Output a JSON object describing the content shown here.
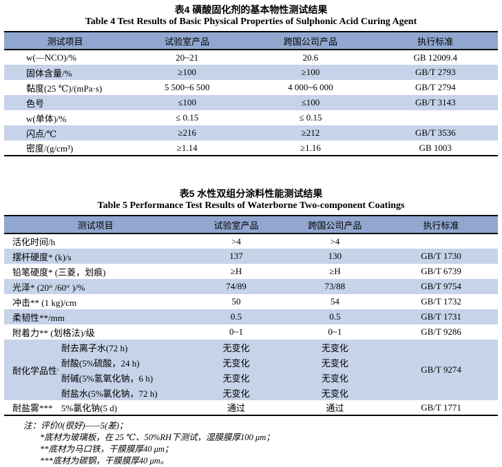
{
  "colors": {
    "header_bg": "#91a7cf",
    "row_shade": "#c6d3e9",
    "text": "#000000"
  },
  "table4": {
    "title_zh": "表4  磺酸固化剂的基本物性测试结果",
    "title_en": "Table 4  Test Results of Basic Physical Properties of Sulphonic Acid Curing Agent",
    "header_cells": [
      {
        "t": "测试项目"
      },
      {
        "t": "试验室产品"
      },
      {
        "t": "跨国公司产品"
      },
      {
        "t": "执行标准"
      }
    ],
    "rows": [
      {
        "shaded": false,
        "cells": [
          {
            "t": "w(—NCO)/%",
            "col": "name"
          },
          {
            "t": "20~21",
            "col": "lab"
          },
          {
            "t": "20.6",
            "col": "mnc"
          },
          {
            "t": "GB 12009.4",
            "col": "std"
          }
        ]
      },
      {
        "shaded": true,
        "cells": [
          {
            "t": "固体含量/%",
            "col": "name"
          },
          {
            "t": "≥100",
            "col": "lab"
          },
          {
            "t": "≥100",
            "col": "mnc"
          },
          {
            "t": "GB/T 2793",
            "col": "std"
          }
        ]
      },
      {
        "shaded": false,
        "cells": [
          {
            "t": "黏度(25 ℃)/(mPa·s)",
            "col": "name"
          },
          {
            "t": "5 500~6 500",
            "col": "lab"
          },
          {
            "t": "4 000~6 000",
            "col": "mnc"
          },
          {
            "t": "GB/T 2794",
            "col": "std"
          }
        ]
      },
      {
        "shaded": true,
        "cells": [
          {
            "t": "色号",
            "col": "name"
          },
          {
            "t": "≤100",
            "col": "lab"
          },
          {
            "t": "≤100",
            "col": "mnc"
          },
          {
            "t": "GB/T 3143",
            "col": "std"
          }
        ]
      },
      {
        "shaded": false,
        "cells": [
          {
            "t": "w(单体)/%",
            "col": "name"
          },
          {
            "t": "≤ 0.15",
            "col": "lab"
          },
          {
            "t": "≤ 0.15",
            "col": "mnc"
          },
          {
            "t": "",
            "col": "std"
          }
        ]
      },
      {
        "shaded": true,
        "cells": [
          {
            "t": "闪点/℃",
            "col": "name"
          },
          {
            "t": "≥216",
            "col": "lab"
          },
          {
            "t": "≥212",
            "col": "mnc"
          },
          {
            "t": "GB/T 3536",
            "col": "std"
          }
        ]
      },
      {
        "shaded": false,
        "cells": [
          {
            "t": "密度/(g/cm³)",
            "col": "name"
          },
          {
            "t": "≥1.14",
            "col": "lab"
          },
          {
            "t": "≥1.16",
            "col": "mnc"
          },
          {
            "t": "GB 1003",
            "col": "std"
          }
        ]
      }
    ]
  },
  "table5": {
    "title_zh": "表5  水性双组分涂料性能测试结果",
    "title_en": "Table 5  Performance Test Results of Waterborne Two-component Coatings",
    "header_cells": [
      {
        "t": "测试项目",
        "cs": 2
      },
      {
        "t": "试验室产品"
      },
      {
        "t": "跨国公司产品"
      },
      {
        "t": "执行标准"
      }
    ],
    "rows": [
      {
        "shaded": false,
        "cells": [
          {
            "t": "活化时间/h",
            "col": "full",
            "cs": 2
          },
          {
            "t": ">4",
            "col": "lab"
          },
          {
            "t": ">4",
            "col": "mnc"
          },
          {
            "t": "",
            "col": "std"
          }
        ]
      },
      {
        "shaded": true,
        "cells": [
          {
            "t": "摆杆硬度* (k)/s",
            "col": "full",
            "cs": 2
          },
          {
            "t": "137",
            "col": "lab"
          },
          {
            "t": "130",
            "col": "mnc"
          },
          {
            "t": "GB/T 1730",
            "col": "std"
          }
        ]
      },
      {
        "shaded": false,
        "cells": [
          {
            "t": "铅笔硬度* (三菱，划痕)",
            "col": "full",
            "cs": 2
          },
          {
            "t": "≥H",
            "col": "lab"
          },
          {
            "t": "≥H",
            "col": "mnc"
          },
          {
            "t": "GB/T 6739",
            "col": "std"
          }
        ]
      },
      {
        "shaded": true,
        "cells": [
          {
            "t": "光泽* (20° /60° )/%",
            "col": "full",
            "cs": 2
          },
          {
            "t": "74/89",
            "col": "lab"
          },
          {
            "t": "73/88",
            "col": "mnc"
          },
          {
            "t": "GB/T 9754",
            "col": "std"
          }
        ]
      },
      {
        "shaded": false,
        "cells": [
          {
            "t": "冲击** (1 kg)/cm",
            "col": "full",
            "cs": 2
          },
          {
            "t": "50",
            "col": "lab"
          },
          {
            "t": "54",
            "col": "mnc"
          },
          {
            "t": "GB/T 1732",
            "col": "std"
          }
        ]
      },
      {
        "shaded": true,
        "cells": [
          {
            "t": "柔韧性**/mm",
            "col": "full",
            "cs": 2
          },
          {
            "t": "0.5",
            "col": "lab"
          },
          {
            "t": "0.5",
            "col": "mnc"
          },
          {
            "t": "GB/T 1731",
            "col": "std"
          }
        ]
      },
      {
        "shaded": false,
        "cells": [
          {
            "t": "附着力** (划格法)/级",
            "col": "full",
            "cs": 2
          },
          {
            "t": "0~1",
            "col": "lab"
          },
          {
            "t": "0~1",
            "col": "mnc"
          },
          {
            "t": "GB/T 9286",
            "col": "std"
          }
        ]
      },
      {
        "shaded": true,
        "cells": [
          {
            "t": "耐化学品性**",
            "col": "group",
            "rs": 4
          },
          {
            "t": "耐去离子水(72 h)",
            "col": "item"
          },
          {
            "t": "无变化",
            "col": "lab"
          },
          {
            "t": "无变化",
            "col": "mnc"
          },
          {
            "t": "GB/T 9274",
            "col": "std",
            "rs": 4
          }
        ]
      },
      {
        "shaded": true,
        "cells": [
          {
            "t": "耐酸(5%硫酸，24 h)",
            "col": "item"
          },
          {
            "t": "无变化",
            "col": "lab"
          },
          {
            "t": "无变化",
            "col": "mnc"
          }
        ]
      },
      {
        "shaded": true,
        "cells": [
          {
            "t": "耐碱(5%氢氧化钠，6 h)",
            "col": "item"
          },
          {
            "t": "无变化",
            "col": "lab"
          },
          {
            "t": "无变化",
            "col": "mnc"
          }
        ]
      },
      {
        "shaded": true,
        "cells": [
          {
            "t": "耐盐水(5%氯化钠，72 h)",
            "col": "item"
          },
          {
            "t": "无变化",
            "col": "lab"
          },
          {
            "t": "无变化",
            "col": "mnc"
          }
        ]
      },
      {
        "shaded": false,
        "cells": [
          {
            "t": "耐盐雾***",
            "col": "group"
          },
          {
            "t": "5%氯化钠(5 d)",
            "col": "item"
          },
          {
            "t": "通过",
            "col": "lab"
          },
          {
            "t": "通过",
            "col": "mnc"
          },
          {
            "t": "GB/T 1771",
            "col": "std"
          }
        ]
      }
    ]
  },
  "notes": {
    "lines": [
      "注：评价0(很好)——5(差)；",
      "*底材为玻璃板，在 25 ℃、50%RH下测试，湿膜膜厚100 μm；",
      "**底材为马口铁，干膜膜厚40 μm；",
      "***底材为碳钢，干膜膜厚40 μm。"
    ]
  }
}
